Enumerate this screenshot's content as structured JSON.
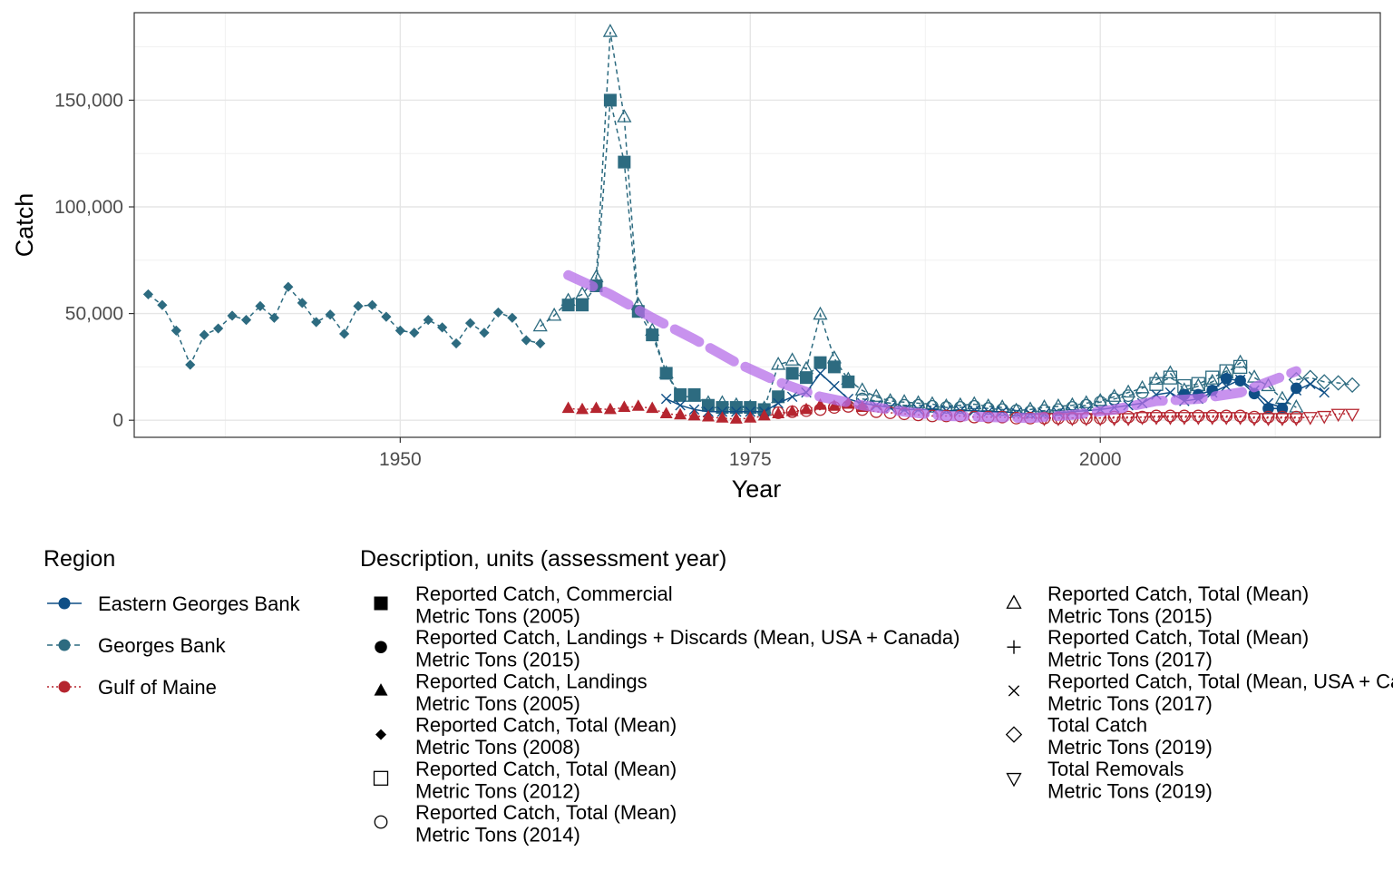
{
  "chart_data": {
    "type": "line",
    "xlabel": "Year",
    "ylabel": "Catch",
    "xlim": [
      1931,
      2020
    ],
    "ylim": [
      -8000,
      191000
    ],
    "x_ticks": [
      1950,
      1975,
      2000
    ],
    "y_ticks": [
      0,
      50000,
      100000,
      150000
    ],
    "x_tick_labels": [
      "1950",
      "1975",
      "2000"
    ],
    "y_tick_labels": [
      "0",
      "50,000",
      "100,000",
      "150,000"
    ],
    "grid": true,
    "colors": {
      "Eastern Georges Bank": "#0f4f86",
      "Georges Bank": "#2d6b80",
      "Gulf of Maine": "#b5252f",
      "trend": "#b56ee8"
    },
    "legend_region": {
      "title": "Region",
      "items": [
        {
          "label": "Eastern Georges Bank",
          "linetype": "solid",
          "color": "#0f4f86"
        },
        {
          "label": "Georges Bank",
          "linetype": "dashed",
          "color": "#2d6b80"
        },
        {
          "label": "Gulf of Maine",
          "linetype": "dotted",
          "color": "#b5252f"
        }
      ]
    },
    "legend_description": {
      "title": "Description, units (assessment year)",
      "items": [
        {
          "shape": "square-filled",
          "line1": "Reported Catch, Commercial",
          "line2": "Metric Tons (2005)"
        },
        {
          "shape": "circle-filled",
          "line1": "Reported Catch, Landings + Discards (Mean, USA + Canada)",
          "line2": "Metric Tons (2015)"
        },
        {
          "shape": "triangle-filled",
          "line1": "Reported Catch, Landings",
          "line2": "Metric Tons (2005)"
        },
        {
          "shape": "diamond-filled",
          "line1": "Reported Catch, Total (Mean)",
          "line2": "Metric Tons (2008)"
        },
        {
          "shape": "square-open",
          "line1": "Reported Catch, Total (Mean)",
          "line2": "Metric Tons (2012)"
        },
        {
          "shape": "circle-open",
          "line1": "Reported Catch, Total (Mean)",
          "line2": "Metric Tons (2014)"
        },
        {
          "shape": "triangle-open",
          "line1": "Reported Catch, Total (Mean)",
          "line2": "Metric Tons (2015)"
        },
        {
          "shape": "plus",
          "line1": "Reported Catch, Total (Mean)",
          "line2": "Metric Tons (2017)"
        },
        {
          "shape": "cross",
          "line1": "Reported Catch, Total (Mean, USA + Canada)",
          "line2": "Metric Tons (2017)"
        },
        {
          "shape": "diamond-open",
          "line1": "Total Catch",
          "line2": "Metric Tons (2019)"
        },
        {
          "shape": "triangle-down-open",
          "line1": "Total Removals",
          "line2": "Metric Tons (2019)"
        }
      ]
    },
    "series": [
      {
        "region": "Georges Bank",
        "shape": "diamond-filled",
        "color": "#2d6b80",
        "dash": "5,4",
        "x": [
          1932,
          1933,
          1934,
          1935,
          1936,
          1937,
          1938,
          1939,
          1940,
          1941,
          1942,
          1943,
          1944,
          1945,
          1946,
          1947,
          1948,
          1949,
          1950,
          1951,
          1952,
          1953,
          1954,
          1955,
          1956,
          1957,
          1958,
          1959,
          1960
        ],
        "y": [
          59000,
          54000,
          42000,
          26000,
          40000,
          43000,
          49000,
          47000,
          53500,
          48000,
          62500,
          55000,
          46000,
          49500,
          40500,
          53500,
          54000,
          48500,
          42000,
          41000,
          47000,
          43500,
          36000,
          45500,
          41000,
          50500,
          48000,
          37500,
          36000
        ]
      },
      {
        "region": "Georges Bank",
        "shape": "triangle-open",
        "color": "#2d6b80",
        "dash": "5,4",
        "x": [
          1960,
          1961,
          1962,
          1963,
          1964,
          1965,
          1966,
          1967,
          1968,
          1969,
          1970,
          1971,
          1972,
          1973,
          1974,
          1975,
          1976,
          1977,
          1978,
          1979,
          1980,
          1981,
          1982,
          1983,
          1984,
          1985,
          1986,
          1987,
          1988,
          1989,
          1990,
          1991,
          1992,
          1993,
          1994,
          1995,
          1996,
          1997,
          1998,
          1999,
          2000,
          2001,
          2002,
          2003,
          2004,
          2005,
          2006,
          2007,
          2008,
          2009,
          2010,
          2011,
          2012,
          2013,
          2014
        ],
        "y": [
          44000,
          49000,
          56000,
          59000,
          67000,
          182000,
          142000,
          54000,
          42000,
          22000,
          11000,
          11000,
          8000,
          8000,
          7000,
          6000,
          5500,
          26000,
          28000,
          24000,
          49500,
          29000,
          19000,
          14000,
          11000,
          9000,
          8500,
          8000,
          7500,
          6500,
          7000,
          7500,
          6500,
          6000,
          4500,
          5000,
          6000,
          6500,
          7000,
          8000,
          9000,
          11000,
          13000,
          15000,
          19000,
          22000,
          14000,
          16000,
          18000,
          22000,
          27000,
          20000,
          16000,
          10000,
          6000
        ]
      },
      {
        "region": "Georges Bank",
        "shape": "square-filled",
        "color": "#2d6b80",
        "dash": "5,4",
        "x": [
          1962,
          1963,
          1964,
          1965,
          1966,
          1967,
          1968,
          1969,
          1970,
          1971,
          1972,
          1973,
          1974,
          1975,
          1976,
          1977,
          1978,
          1979,
          1980,
          1981,
          1982
        ],
        "y": [
          54000,
          54000,
          63000,
          150000,
          121000,
          51000,
          40000,
          22000,
          12000,
          12000,
          7000,
          6000,
          6000,
          6000,
          5000,
          11000,
          22000,
          20000,
          27000,
          25000,
          18000
        ]
      },
      {
        "region": "Georges Bank",
        "shape": "circle-open",
        "color": "#2d6b80",
        "dash": "5,4",
        "x": [
          1983,
          1984,
          1985,
          1986,
          1987,
          1988,
          1989,
          1990,
          1991,
          1992,
          1993,
          1994,
          1995,
          1996,
          1997,
          1998,
          1999,
          2000,
          2001,
          2002,
          2003
        ],
        "y": [
          10000,
          9000,
          8000,
          7000,
          7000,
          6500,
          6000,
          6000,
          6500,
          5500,
          5000,
          4500,
          4000,
          4500,
          5000,
          6000,
          7000,
          8500,
          10000,
          11500,
          13000
        ]
      },
      {
        "region": "Georges Bank",
        "shape": "square-open",
        "color": "#2d6b80",
        "dash": "5,4",
        "x": [
          2004,
          2005,
          2006,
          2007,
          2008,
          2009,
          2010
        ],
        "y": [
          17000,
          20000,
          16000,
          17000,
          20000,
          23000,
          25000
        ]
      },
      {
        "region": "Georges Bank",
        "shape": "diamond-open",
        "color": "#2d6b80",
        "dash": "5,4",
        "x": [
          2014,
          2015,
          2016,
          2017,
          2018
        ],
        "y": [
          19000,
          20000,
          18000,
          17500,
          16500
        ]
      },
      {
        "region": "Eastern Georges Bank",
        "shape": "cross",
        "color": "#0f4f86",
        "dash": "",
        "x": [
          1969,
          1970,
          1971,
          1972,
          1973,
          1974,
          1975,
          1976,
          1977,
          1978,
          1979,
          1980,
          1981,
          1982,
          1983,
          1984,
          1985,
          1986,
          1987,
          1988,
          1989,
          1990,
          1991,
          1992,
          1993,
          1994,
          1995,
          1996,
          1997,
          1998,
          1999,
          2000,
          2001,
          2002,
          2003,
          2004,
          2005,
          2006,
          2007,
          2008,
          2009,
          2010,
          2011,
          2012,
          2013,
          2014,
          2015,
          2016
        ],
        "y": [
          10000,
          7000,
          5000,
          4000,
          4000,
          4000,
          4000,
          4000,
          8000,
          11000,
          13000,
          22000,
          16000,
          10000,
          8000,
          7000,
          6000,
          5000,
          5000,
          5000,
          4500,
          4500,
          4500,
          4000,
          4000,
          3500,
          3000,
          3000,
          3500,
          4000,
          4500,
          5000,
          6000,
          7000,
          8000,
          12000,
          13000,
          9000,
          10000,
          13000,
          16000,
          19000,
          14000,
          8000,
          6000,
          14000,
          17000,
          13000
        ]
      },
      {
        "region": "Eastern Georges Bank",
        "shape": "circle-filled",
        "color": "#0f4f86",
        "dash": "",
        "x": [
          2006,
          2007,
          2008,
          2009,
          2010,
          2011,
          2012,
          2013,
          2014
        ],
        "y": [
          12000,
          12000,
          14000,
          19500,
          18500,
          12500,
          5500,
          5500,
          15000
        ]
      },
      {
        "region": "Gulf of Maine",
        "shape": "triangle-filled",
        "color": "#b5252f",
        "dash": "2,3",
        "x": [
          1962,
          1963,
          1964,
          1965,
          1966,
          1967,
          1968,
          1969,
          1970,
          1971,
          1972,
          1973,
          1974,
          1975,
          1976,
          1977,
          1978,
          1979,
          1980,
          1981,
          1982,
          1983
        ],
        "y": [
          5500,
          5000,
          5500,
          5000,
          6000,
          6500,
          5500,
          3000,
          2500,
          2000,
          1500,
          1000,
          500,
          1000,
          2000,
          3000,
          4000,
          5000,
          7000,
          6500,
          7500,
          6000
        ]
      },
      {
        "region": "Gulf of Maine",
        "shape": "circle-open",
        "color": "#b5252f",
        "dash": "2,3",
        "x": [
          1977,
          1978,
          1979,
          1980,
          1981,
          1982,
          1983,
          1984,
          1985,
          1986,
          1987,
          1988,
          1989,
          1990,
          1991,
          1992,
          1993,
          1994,
          1995,
          1996,
          1997,
          1998,
          1999,
          2000,
          2001,
          2002,
          2003,
          2004,
          2005,
          2006,
          2007,
          2008,
          2009,
          2010,
          2011,
          2012,
          2013,
          2014
        ],
        "y": [
          3500,
          4000,
          4500,
          5000,
          6000,
          6500,
          5000,
          4000,
          3500,
          3000,
          2500,
          2000,
          2000,
          2000,
          1500,
          1500,
          1500,
          1000,
          1000,
          1000,
          1000,
          1000,
          1000,
          1000,
          1500,
          1500,
          1500,
          2000,
          2000,
          2000,
          2000,
          2000,
          2000,
          2000,
          1500,
          1500,
          1500,
          1500
        ]
      },
      {
        "region": "Gulf of Maine",
        "shape": "triangle-down-open",
        "color": "#b5252f",
        "dash": "2,3",
        "x": [
          1996,
          1997,
          1998,
          1999,
          2000,
          2001,
          2002,
          2003,
          2004,
          2005,
          2006,
          2007,
          2008,
          2009,
          2010,
          2011,
          2012,
          2013,
          2014,
          2015,
          2016,
          2017,
          2018
        ],
        "y": [
          1000,
          1000,
          1000,
          1000,
          1000,
          1000,
          1000,
          1500,
          1500,
          1500,
          1500,
          1500,
          1500,
          1500,
          1500,
          1000,
          1000,
          1000,
          1000,
          1500,
          2000,
          3000,
          3000
        ]
      },
      {
        "region": "Trend",
        "shape": "trend",
        "color": "#b56ee8",
        "dash": "30,14",
        "x": [
          1962,
          1965,
          1968,
          1971,
          1974,
          1977,
          1980,
          1983,
          1986,
          1989,
          1992,
          1995,
          1998,
          2001,
          2004,
          2007,
          2010,
          2014
        ],
        "y": [
          68000,
          59000,
          48000,
          38000,
          27000,
          18000,
          11000,
          7000,
          4000,
          2000,
          1500,
          1000,
          2500,
          5000,
          9000,
          10000,
          13000,
          23000
        ]
      }
    ]
  }
}
